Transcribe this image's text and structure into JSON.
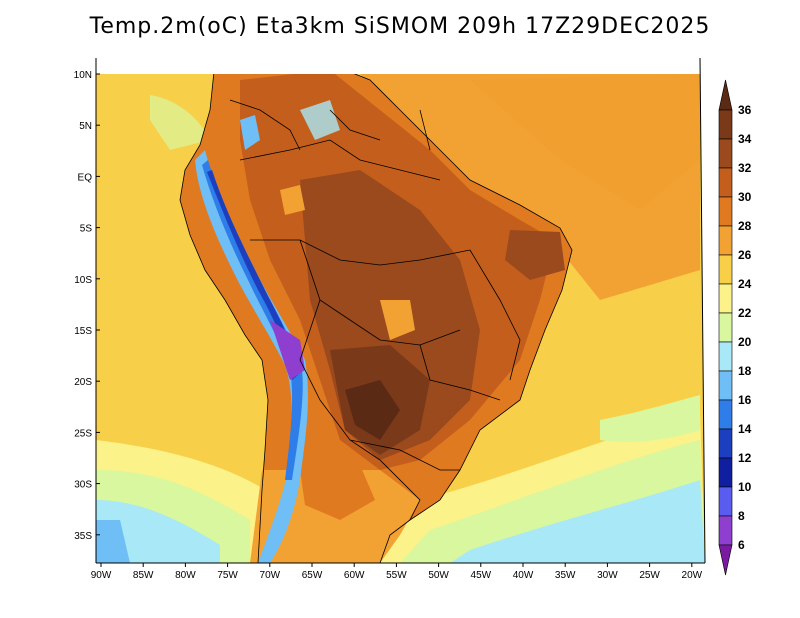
{
  "title": "Temp.2m(oC) Eta3km SiSMOM 209h 17Z29DEC2025",
  "lat_labels": [
    "10N",
    "5N",
    "EQ",
    "5S",
    "10S",
    "15S",
    "20S",
    "25S",
    "30S",
    "35S"
  ],
  "lon_labels": [
    "90W",
    "85W",
    "80W",
    "75W",
    "70W",
    "65W",
    "60W",
    "55W",
    "50W",
    "45W",
    "40W",
    "35W",
    "30W",
    "25W",
    "20W"
  ],
  "colorbar": {
    "labels": [
      "36",
      "34",
      "32",
      "30",
      "28",
      "26",
      "24",
      "22",
      "20",
      "18",
      "16",
      "14",
      "12",
      "10",
      "8",
      "6"
    ],
    "colors": [
      "#5a2a14",
      "#7a3a1a",
      "#9a4a1c",
      "#c45e1c",
      "#e07a20",
      "#f2a233",
      "#f8cf48",
      "#fbf28a",
      "#d9f79e",
      "#a9e8f6",
      "#6fbef5",
      "#2f7de8",
      "#1c3fc0",
      "#0f1fa0",
      "#5a5cf0",
      "#8f3fd0",
      "#7a1aa0"
    ]
  }
}
